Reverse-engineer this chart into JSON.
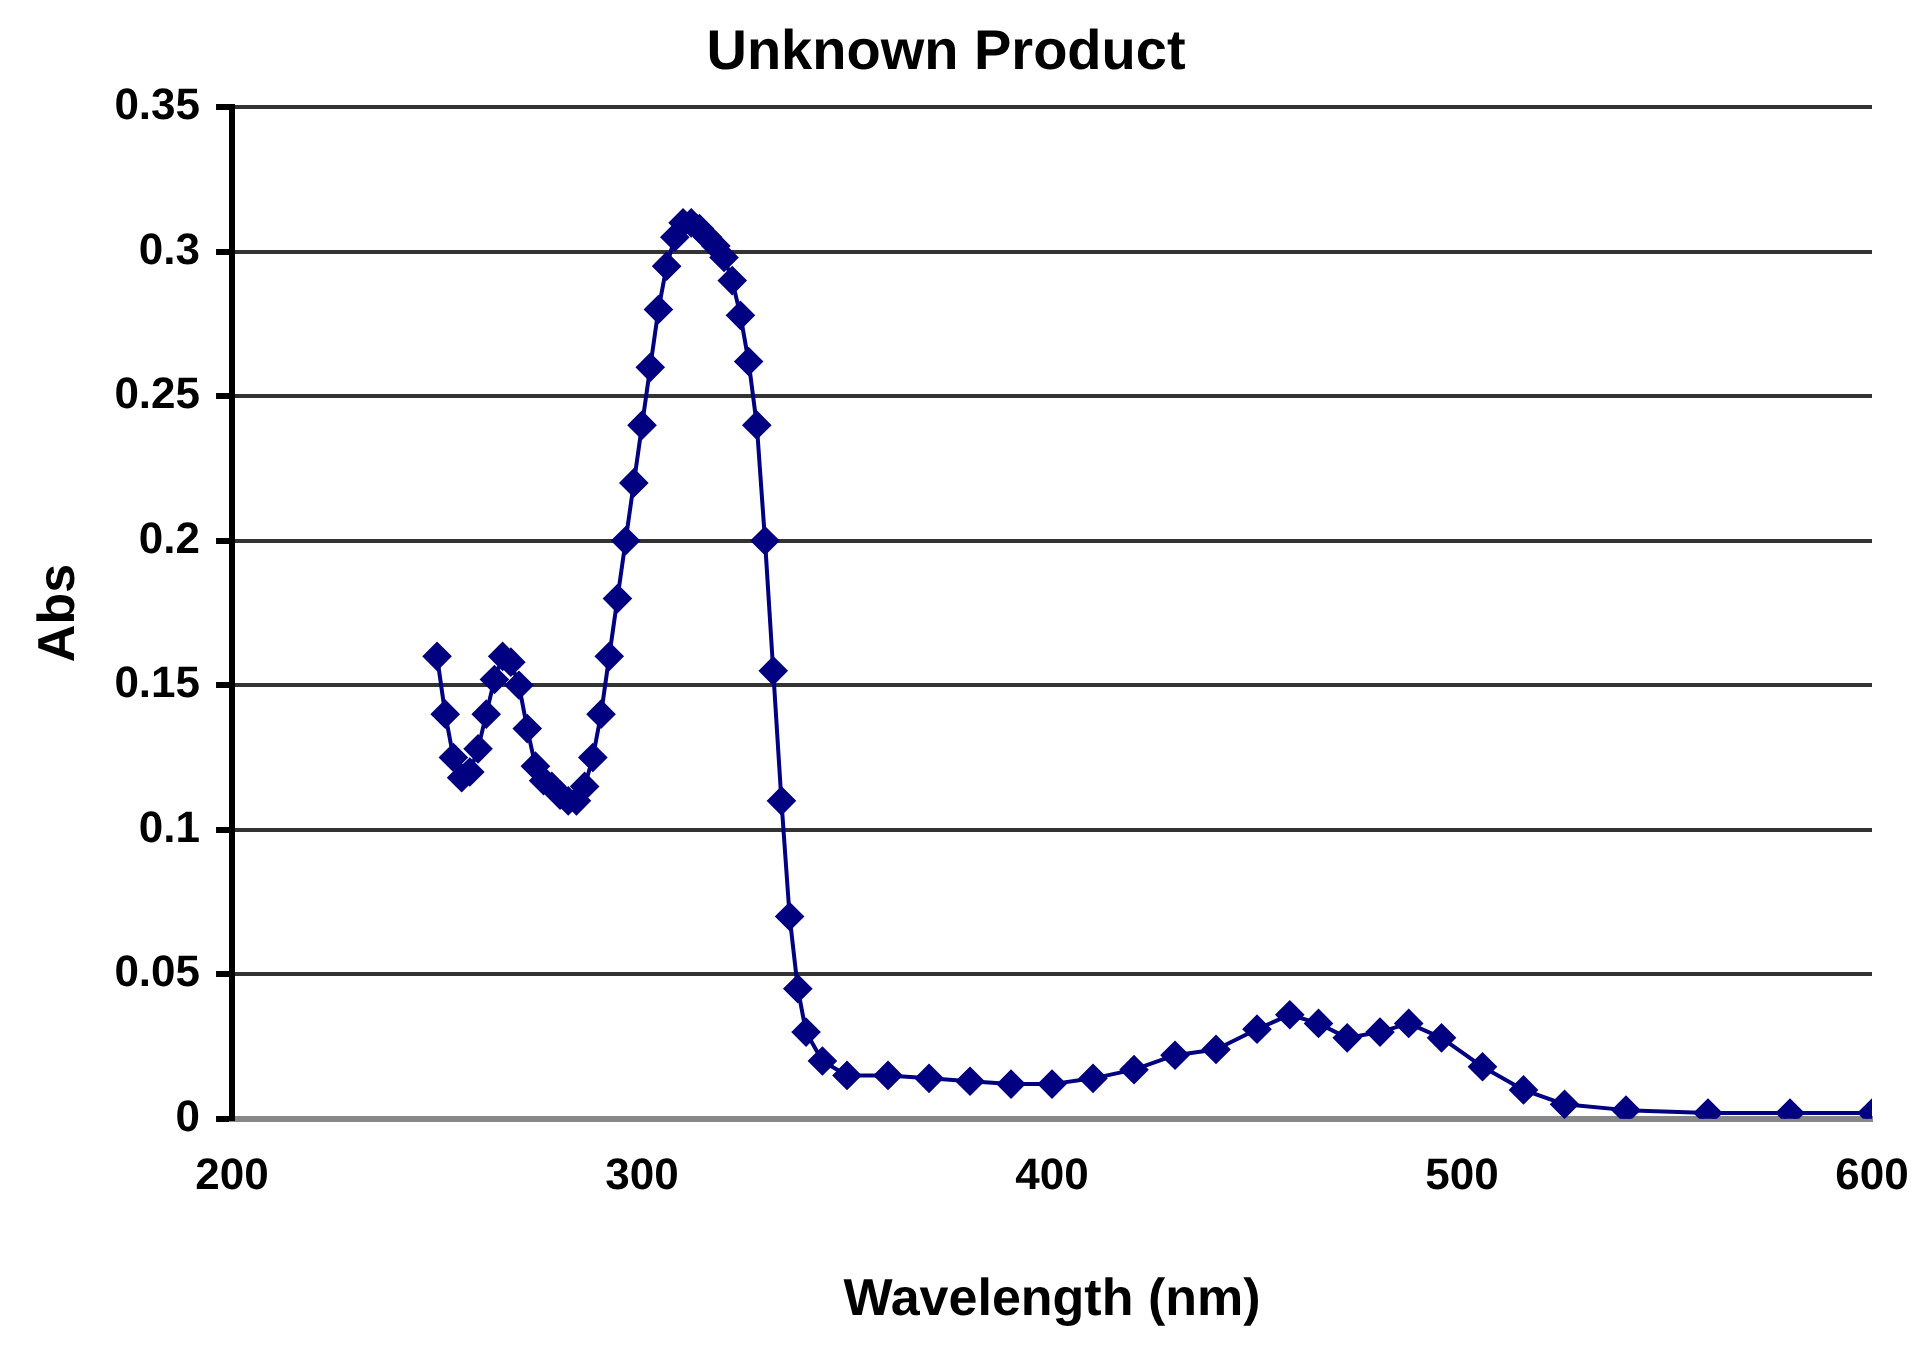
{
  "chart_data": {
    "type": "line",
    "title": "Unknown Product",
    "xlabel": "Wavelength (nm)",
    "ylabel": "Abs",
    "xlim": [
      200,
      600
    ],
    "xticks": [
      200,
      300,
      400,
      500,
      600
    ],
    "ylim": [
      0,
      0.35
    ],
    "yticks": [
      0,
      0.05,
      0.1,
      0.15,
      0.2,
      0.25,
      0.3,
      0.35
    ],
    "grid": "y",
    "marker": "diamond",
    "legend": false,
    "x": [
      250,
      252,
      254,
      256,
      258,
      260,
      262,
      264,
      266,
      268,
      270,
      272,
      274,
      276,
      278,
      280,
      282,
      284,
      286,
      288,
      290,
      292,
      294,
      296,
      298,
      300,
      302,
      304,
      306,
      308,
      310,
      312,
      314,
      316,
      318,
      320,
      322,
      324,
      326,
      328,
      330,
      332,
      334,
      336,
      338,
      340,
      344,
      350,
      360,
      370,
      380,
      390,
      400,
      410,
      420,
      430,
      440,
      450,
      458,
      465,
      472,
      480,
      487,
      495,
      505,
      515,
      525,
      540,
      560,
      580,
      600
    ],
    "series": [
      {
        "color": "#000080",
        "values": [
          0.16,
          0.14,
          0.125,
          0.118,
          0.12,
          0.128,
          0.14,
          0.152,
          0.16,
          0.158,
          0.15,
          0.135,
          0.122,
          0.117,
          0.115,
          0.112,
          0.11,
          0.11,
          0.115,
          0.125,
          0.14,
          0.16,
          0.18,
          0.2,
          0.22,
          0.24,
          0.26,
          0.28,
          0.295,
          0.305,
          0.31,
          0.31,
          0.308,
          0.305,
          0.302,
          0.298,
          0.29,
          0.278,
          0.262,
          0.24,
          0.2,
          0.155,
          0.11,
          0.07,
          0.045,
          0.03,
          0.02,
          0.015,
          0.015,
          0.014,
          0.013,
          0.012,
          0.012,
          0.014,
          0.017,
          0.022,
          0.024,
          0.031,
          0.036,
          0.033,
          0.028,
          0.03,
          0.033,
          0.028,
          0.018,
          0.01,
          0.005,
          0.003,
          0.002,
          0.002,
          0.002
        ]
      }
    ]
  }
}
